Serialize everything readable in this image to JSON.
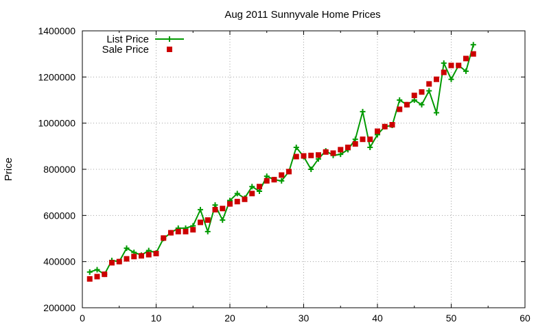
{
  "chart_data": {
    "type": "line",
    "title": "Aug 2011 Sunnyvale Home Prices",
    "xlabel": "",
    "ylabel": "Price",
    "xlim": [
      0,
      60
    ],
    "ylim": [
      200000,
      1400000
    ],
    "xticks": [
      0,
      10,
      20,
      30,
      40,
      50,
      60
    ],
    "yticks": [
      200000,
      400000,
      600000,
      800000,
      1000000,
      1200000,
      1400000
    ],
    "grid": true,
    "legend_position": "top-left",
    "series": [
      {
        "name": "List Price",
        "style": "line-with-plus-markers",
        "color": "#009900",
        "x": [
          1,
          2,
          3,
          4,
          5,
          6,
          7,
          8,
          9,
          10,
          11,
          12,
          13,
          14,
          15,
          16,
          17,
          18,
          19,
          20,
          21,
          22,
          23,
          24,
          25,
          26,
          27,
          28,
          29,
          30,
          31,
          32,
          33,
          34,
          35,
          36,
          37,
          38,
          39,
          40,
          41,
          42,
          43,
          44,
          45,
          46,
          47,
          48,
          49,
          50,
          51,
          52,
          53
        ],
        "values": [
          355000,
          365000,
          345000,
          405000,
          400000,
          458000,
          440000,
          428000,
          448000,
          438000,
          500000,
          525000,
          545000,
          545000,
          555000,
          625000,
          530000,
          645000,
          580000,
          665000,
          695000,
          675000,
          725000,
          705000,
          770000,
          755000,
          750000,
          790000,
          895000,
          855000,
          800000,
          845000,
          880000,
          860000,
          865000,
          885000,
          930000,
          1050000,
          895000,
          950000,
          985000,
          990000,
          1100000,
          1080000,
          1100000,
          1080000,
          1140000,
          1045000,
          1260000,
          1190000,
          1250000,
          1225000,
          1340000
        ]
      },
      {
        "name": "Sale Price",
        "style": "square-markers",
        "color": "#cc0000",
        "x": [
          1,
          2,
          3,
          4,
          5,
          6,
          7,
          8,
          9,
          10,
          11,
          12,
          13,
          14,
          15,
          16,
          17,
          18,
          19,
          20,
          21,
          22,
          23,
          24,
          25,
          26,
          27,
          28,
          29,
          30,
          31,
          32,
          33,
          34,
          35,
          36,
          37,
          38,
          39,
          40,
          41,
          42,
          43,
          44,
          45,
          46,
          47,
          48,
          49,
          50,
          51,
          52,
          53
        ],
        "values": [
          325000,
          335000,
          345000,
          395000,
          400000,
          412000,
          422000,
          425000,
          430000,
          435000,
          502000,
          525000,
          530000,
          530000,
          538000,
          570000,
          580000,
          625000,
          630000,
          650000,
          660000,
          670000,
          695000,
          725000,
          750000,
          755000,
          775000,
          790000,
          855000,
          858000,
          860000,
          862000,
          875000,
          870000,
          885000,
          895000,
          910000,
          930000,
          930000,
          965000,
          985000,
          993000,
          1060000,
          1080000,
          1120000,
          1135000,
          1170000,
          1190000,
          1220000,
          1250000,
          1250000,
          1280000,
          1300000
        ]
      }
    ]
  }
}
